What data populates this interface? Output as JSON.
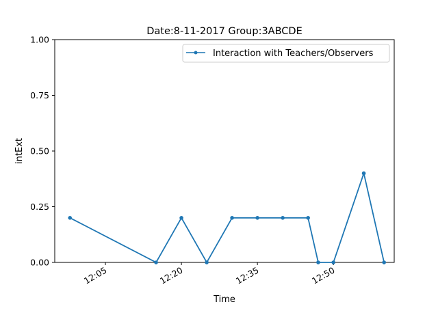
{
  "chart_data": {
    "type": "line",
    "title": "Date:8-11-2017  Group:3ABCDE",
    "xlabel": "Time",
    "ylabel": "intExt",
    "ylim": [
      0,
      1
    ],
    "xlim": [
      "11:55",
      "13:02"
    ],
    "yticks": [
      "0.00",
      "0.25",
      "0.50",
      "0.75",
      "1.00"
    ],
    "xticks": [
      "12:05",
      "12:20",
      "12:35",
      "12:50"
    ],
    "legend_position": "upper right",
    "grid": false,
    "series": [
      {
        "name": "Interaction with Teachers/Observers",
        "color": "#1f77b4",
        "points": [
          {
            "x": "11:58",
            "y": 0.2
          },
          {
            "x": "12:15",
            "y": 0.0
          },
          {
            "x": "12:20",
            "y": 0.2
          },
          {
            "x": "12:25",
            "y": 0.0
          },
          {
            "x": "12:30",
            "y": 0.2
          },
          {
            "x": "12:35",
            "y": 0.2
          },
          {
            "x": "12:40",
            "y": 0.2
          },
          {
            "x": "12:45",
            "y": 0.2
          },
          {
            "x": "12:47",
            "y": 0.0
          },
          {
            "x": "12:50",
            "y": 0.0
          },
          {
            "x": "12:56",
            "y": 0.4
          },
          {
            "x": "13:00",
            "y": 0.0
          }
        ]
      }
    ]
  }
}
